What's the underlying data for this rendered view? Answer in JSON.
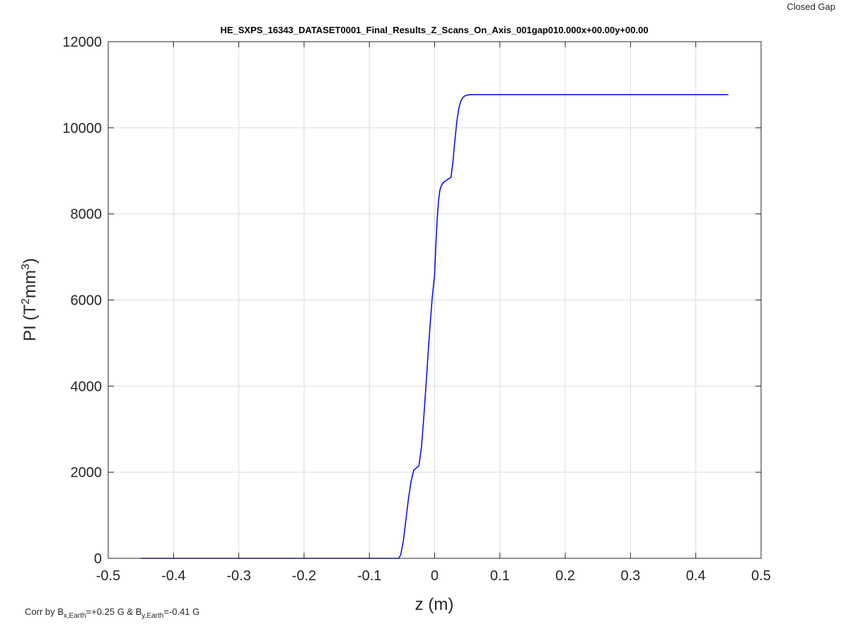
{
  "chart_data": {
    "type": "line",
    "title": "HE_SXPS_16343_DATASET0001_Final_Results_Z_Scans_On_Axis_001gap010.000x+00.00y+00.00",
    "corner_note": "Closed Gap",
    "xlabel": "z (m)",
    "ylabel": {
      "prefix": "PI (T",
      "sup1": "2",
      "mid": "mm",
      "sup2": "3",
      "suffix": ")"
    },
    "footnote": {
      "prefix": "Corr by B",
      "sub1": "x,Earth",
      "mid": "=+0.25 G & B",
      "sub2": "y,Earth",
      "suffix": "=-0.41 G"
    },
    "xlim": [
      -0.5,
      0.5
    ],
    "ylim": [
      0,
      12000
    ],
    "xticks": [
      -0.5,
      -0.4,
      -0.3,
      -0.2,
      -0.1,
      0,
      0.1,
      0.2,
      0.3,
      0.4,
      0.5
    ],
    "xtick_labels": [
      "-0.5",
      "-0.4",
      "-0.3",
      "-0.2",
      "-0.1",
      "0",
      "0.1",
      "0.2",
      "0.3",
      "0.4",
      "0.5"
    ],
    "yticks": [
      0,
      2000,
      4000,
      6000,
      8000,
      10000,
      12000
    ],
    "ytick_labels": [
      "0",
      "2000",
      "4000",
      "6000",
      "8000",
      "10000",
      "12000"
    ],
    "grid": true,
    "series_color": "#0000ff",
    "series": [
      {
        "x": [
          -0.45,
          -0.1,
          -0.055,
          -0.052,
          -0.048,
          -0.044,
          -0.04,
          -0.036,
          -0.032,
          -0.028,
          -0.024,
          -0.02,
          -0.016,
          -0.012,
          -0.008,
          -0.004,
          0.0,
          0.002,
          0.004,
          0.006,
          0.008,
          0.01,
          0.013,
          0.016,
          0.02,
          0.025,
          0.028,
          0.031,
          0.034,
          0.037,
          0.04,
          0.043,
          0.046,
          0.05,
          0.055,
          0.06,
          0.45
        ],
        "y": [
          0,
          0,
          0,
          80,
          400,
          900,
          1400,
          1800,
          2050,
          2100,
          2150,
          2600,
          3400,
          4300,
          5200,
          6000,
          6600,
          7300,
          7900,
          8300,
          8550,
          8650,
          8720,
          8760,
          8800,
          8850,
          9200,
          9700,
          10150,
          10450,
          10620,
          10700,
          10740,
          10760,
          10770,
          10770,
          10770
        ]
      }
    ]
  }
}
